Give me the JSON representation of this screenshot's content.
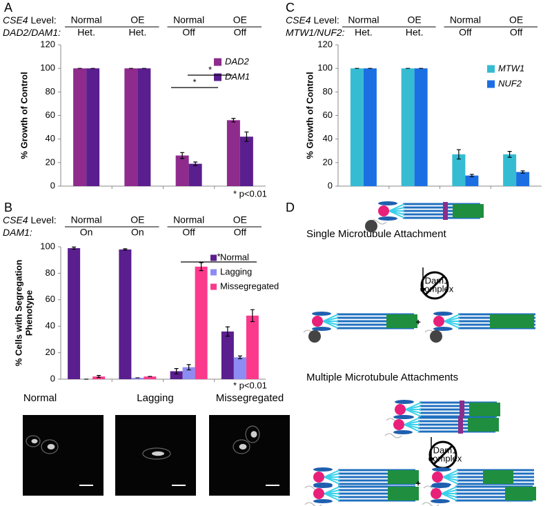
{
  "panel_labels": [
    "A",
    "B",
    "C",
    "D"
  ],
  "chart_data": [
    {
      "type": "bar",
      "header": [
        {
          "label": "CSE4 Level:",
          "values": [
            "Normal",
            "OE",
            "Normal",
            "OE"
          ]
        },
        {
          "label": "DAD2/DAM1:",
          "values": [
            "Het.",
            "Het.",
            "Off",
            "Off"
          ]
        }
      ],
      "ylabel": [
        "% Growth of Control"
      ],
      "ylim": [
        0,
        120
      ],
      "yticks": [
        0,
        20,
        40,
        60,
        80,
        100,
        120
      ],
      "series": [
        {
          "name": "DAD2",
          "color": "#8e2b8c",
          "values": [
            100,
            100,
            26,
            56
          ],
          "errors": [
            0,
            0,
            2.5,
            1.5
          ]
        },
        {
          "name": "DAM1",
          "color": "#5a1e8e",
          "values": [
            100,
            100,
            19,
            42
          ],
          "errors": [
            0,
            0,
            1.5,
            4
          ]
        }
      ],
      "significance": [
        "*",
        "*"
      ],
      "note": "* p<0.01",
      "legend": "upper right"
    },
    {
      "type": "bar",
      "header": [
        {
          "label": "CSE4 Level:",
          "values": [
            "Normal",
            "OE",
            "Normal",
            "OE"
          ]
        },
        {
          "label": "DAM1:",
          "values": [
            "On",
            "On",
            "Off",
            "Off"
          ]
        }
      ],
      "ylabel": [
        "% Cells with Segregation",
        "Phenotype"
      ],
      "ylim": [
        0,
        100
      ],
      "yticks": [
        0,
        20,
        40,
        60,
        80,
        100
      ],
      "series": [
        {
          "name": "Normal",
          "color": "#5a1e8e",
          "values": [
            99,
            98,
            6,
            36
          ],
          "errors": [
            0.8,
            0.5,
            2,
            3.5
          ]
        },
        {
          "name": "Lagging",
          "color": "#8c8cf2",
          "values": [
            0,
            1,
            9,
            16.5
          ],
          "errors": [
            0,
            0,
            2,
            1
          ]
        },
        {
          "name": "Missegregated",
          "color": "#fb3a8c",
          "values": [
            2,
            2,
            85,
            48
          ],
          "errors": [
            0.8,
            0,
            3,
            4.5
          ]
        }
      ],
      "significance": [
        "*"
      ],
      "note": "* p<0.01",
      "legend": "upper right"
    },
    {
      "type": "bar",
      "header": [
        {
          "label": "CSE4 Level:",
          "values": [
            "Normal",
            "OE",
            "Normal",
            "OE"
          ]
        },
        {
          "label": "MTW1/NUF2:",
          "values": [
            "Het.",
            "Het.",
            "Off",
            "Off"
          ]
        }
      ],
      "ylabel": [
        "% Growth of Control"
      ],
      "ylim": [
        0,
        120
      ],
      "yticks": [
        0,
        20,
        40,
        60,
        80,
        100,
        120
      ],
      "series": [
        {
          "name": "MTW1",
          "color": "#35bcd2",
          "values": [
            100,
            100,
            27,
            27
          ],
          "errors": [
            0,
            0,
            4,
            2.5
          ]
        },
        {
          "name": "NUF2",
          "color": "#1b6fe3",
          "values": [
            100,
            100,
            9,
            12
          ],
          "errors": [
            0,
            0,
            1,
            1
          ]
        }
      ],
      "legend": "upper right"
    }
  ],
  "micrographs": {
    "labels": [
      "Normal",
      "Lagging",
      "Missegregated"
    ]
  },
  "diagram": {
    "single_title": "Single Microtubule Attachment",
    "multiple_title": "Multiple Microtubule Attachments",
    "blocked": [
      [
        "Dam1",
        "complex"
      ],
      [
        "Dam1",
        "complex"
      ]
    ],
    "plus": [
      "+",
      "+"
    ]
  }
}
